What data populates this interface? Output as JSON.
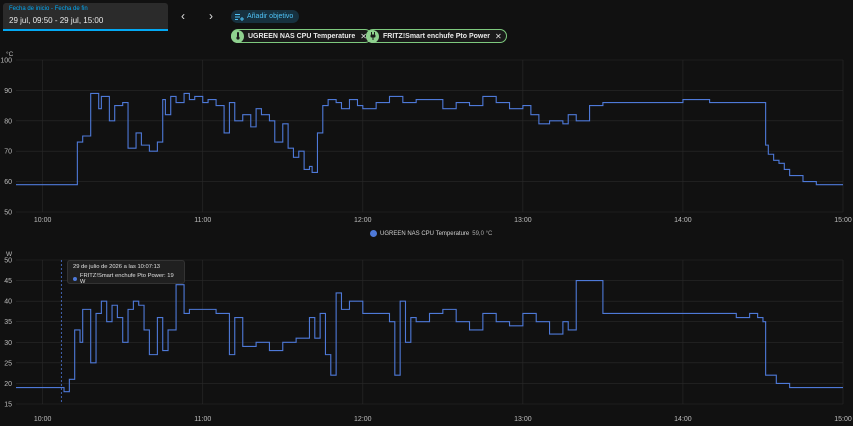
{
  "date_range": {
    "label": "Fecha de inicio - Fecha de fin",
    "value": "29 jul, 09:50 - 29 jul, 15:00"
  },
  "nav": {
    "prev_icon": "‹",
    "next_icon": "›"
  },
  "add_target": {
    "label": "Añadir objetivo",
    "icon": "playlist-plus-icon"
  },
  "targets": [
    {
      "label": "UGREEN NAS CPU Temperature",
      "icon": "thermometer-icon",
      "remove_icon": "✕"
    },
    {
      "label": "FRITZ!Smart enchufe Pto Power",
      "icon": "plug-icon",
      "remove_icon": "✕"
    }
  ],
  "colors": {
    "accent": "#03a9f4",
    "series": "#4e79d8",
    "chip_border": "#7ec97e",
    "grid": "#2a2a2a"
  },
  "legend": {
    "name": "UGREEN NAS CPU Temperature",
    "value": "59,0 °C"
  },
  "tooltip": {
    "title": "29 de julio de 2026 a las 10:07:13",
    "text": "FRITZ!Smart enchufe Pto Power: 19 W"
  },
  "chart_data": [
    {
      "type": "line",
      "unit": "°C",
      "ylim": [
        50,
        100
      ],
      "yticks": [
        50,
        60,
        70,
        80,
        90,
        100
      ],
      "xlim": [
        "09:50",
        "15:00"
      ],
      "xticks": [
        "10:00",
        "11:00",
        "12:00",
        "13:00",
        "14:00",
        "15:00"
      ],
      "grid": true,
      "legend_position": "bottom",
      "series": [
        {
          "name": "UGREEN NAS CPU Temperature",
          "x": [
            "09:50",
            "10:04",
            "10:05",
            "10:07",
            "10:10",
            "10:13",
            "10:15",
            "10:18",
            "10:21",
            "10:22",
            "10:25",
            "10:27",
            "10:30",
            "10:32",
            "10:35",
            "10:37",
            "10:40",
            "10:43",
            "10:45",
            "10:46",
            "10:48",
            "10:50",
            "10:53",
            "10:55",
            "10:57",
            "11:00",
            "11:02",
            "11:05",
            "11:07",
            "11:08",
            "11:10",
            "11:12",
            "11:15",
            "11:18",
            "11:20",
            "11:22",
            "11:25",
            "11:27",
            "11:30",
            "11:32",
            "11:34",
            "11:36",
            "11:38",
            "11:40",
            "11:41",
            "11:43",
            "11:45",
            "11:47",
            "11:50",
            "11:52",
            "11:55",
            "11:58",
            "12:00",
            "12:05",
            "12:10",
            "12:15",
            "12:20",
            "12:25",
            "12:30",
            "12:35",
            "12:40",
            "12:45",
            "12:50",
            "12:55",
            "13:00",
            "13:03",
            "13:06",
            "13:10",
            "13:15",
            "13:17",
            "13:20",
            "13:25",
            "13:30",
            "13:40",
            "13:50",
            "14:00",
            "14:10",
            "14:20",
            "14:28",
            "14:30",
            "14:31",
            "14:32",
            "14:34",
            "14:36",
            "14:38",
            "14:40",
            "14:45",
            "14:50",
            "15:00"
          ],
          "values": [
            59,
            59,
            59,
            59,
            59,
            73,
            75,
            89,
            84,
            88,
            80,
            85,
            86,
            71,
            76,
            72,
            70,
            73,
            87,
            82,
            88,
            86,
            89,
            87,
            88,
            86,
            87,
            85,
            85,
            76,
            86,
            80,
            82,
            78,
            84,
            82,
            80,
            73,
            79,
            71,
            68,
            70,
            64,
            65,
            63,
            76,
            85,
            87,
            86,
            84,
            87,
            85,
            84,
            86,
            88,
            86,
            87,
            87,
            84,
            86,
            85,
            88,
            86,
            84,
            85,
            82,
            79,
            80,
            79,
            82,
            80,
            85,
            86,
            86,
            86,
            87,
            86,
            86,
            86,
            86,
            72,
            69,
            67,
            66,
            64,
            62,
            60,
            59,
            59
          ]
        }
      ]
    },
    {
      "type": "line",
      "unit": "W",
      "ylim": [
        15,
        50
      ],
      "yticks": [
        15,
        20,
        25,
        30,
        35,
        40,
        45,
        50
      ],
      "xlim": [
        "09:50",
        "15:00"
      ],
      "xticks": [
        "10:00",
        "11:00",
        "12:00",
        "13:00",
        "14:00",
        "15:00"
      ],
      "grid": true,
      "series": [
        {
          "name": "FRITZ!Smart enchufe Pto Power",
          "x": [
            "09:50",
            "10:07",
            "10:08",
            "10:10",
            "10:12",
            "10:14",
            "10:15",
            "10:18",
            "10:20",
            "10:22",
            "10:24",
            "10:26",
            "10:28",
            "10:30",
            "10:32",
            "10:34",
            "10:36",
            "10:38",
            "10:40",
            "10:43",
            "10:45",
            "10:47",
            "10:50",
            "10:53",
            "10:55",
            "11:00",
            "11:05",
            "11:10",
            "11:12",
            "11:15",
            "11:20",
            "11:25",
            "11:30",
            "11:35",
            "11:40",
            "11:42",
            "11:44",
            "11:46",
            "11:48",
            "11:50",
            "11:52",
            "11:55",
            "12:00",
            "12:05",
            "12:10",
            "12:12",
            "12:14",
            "12:16",
            "12:18",
            "12:20",
            "12:25",
            "12:30",
            "12:35",
            "12:40",
            "12:45",
            "12:50",
            "12:55",
            "13:00",
            "13:05",
            "13:10",
            "13:15",
            "13:17",
            "13:20",
            "13:30",
            "13:40",
            "13:50",
            "14:00",
            "14:10",
            "14:20",
            "14:25",
            "14:28",
            "14:30",
            "14:31",
            "14:35",
            "14:40",
            "14:50",
            "15:00"
          ],
          "values": [
            19,
            19,
            18,
            21,
            33,
            30,
            38,
            25,
            37,
            40,
            35,
            39,
            36,
            30,
            38,
            40,
            39,
            33,
            27,
            36,
            28,
            33,
            44,
            37,
            38,
            38,
            37,
            27,
            36,
            29,
            30,
            28,
            30,
            31,
            36,
            31,
            37,
            27,
            22,
            42,
            38,
            40,
            37,
            37,
            35,
            22,
            40,
            30,
            36,
            35,
            37,
            38,
            35,
            33,
            37,
            35,
            34,
            37,
            35,
            32,
            35,
            33,
            45,
            37,
            37,
            37,
            37,
            37,
            36,
            37,
            36,
            35,
            22,
            20,
            19,
            19,
            19
          ]
        }
      ]
    }
  ]
}
